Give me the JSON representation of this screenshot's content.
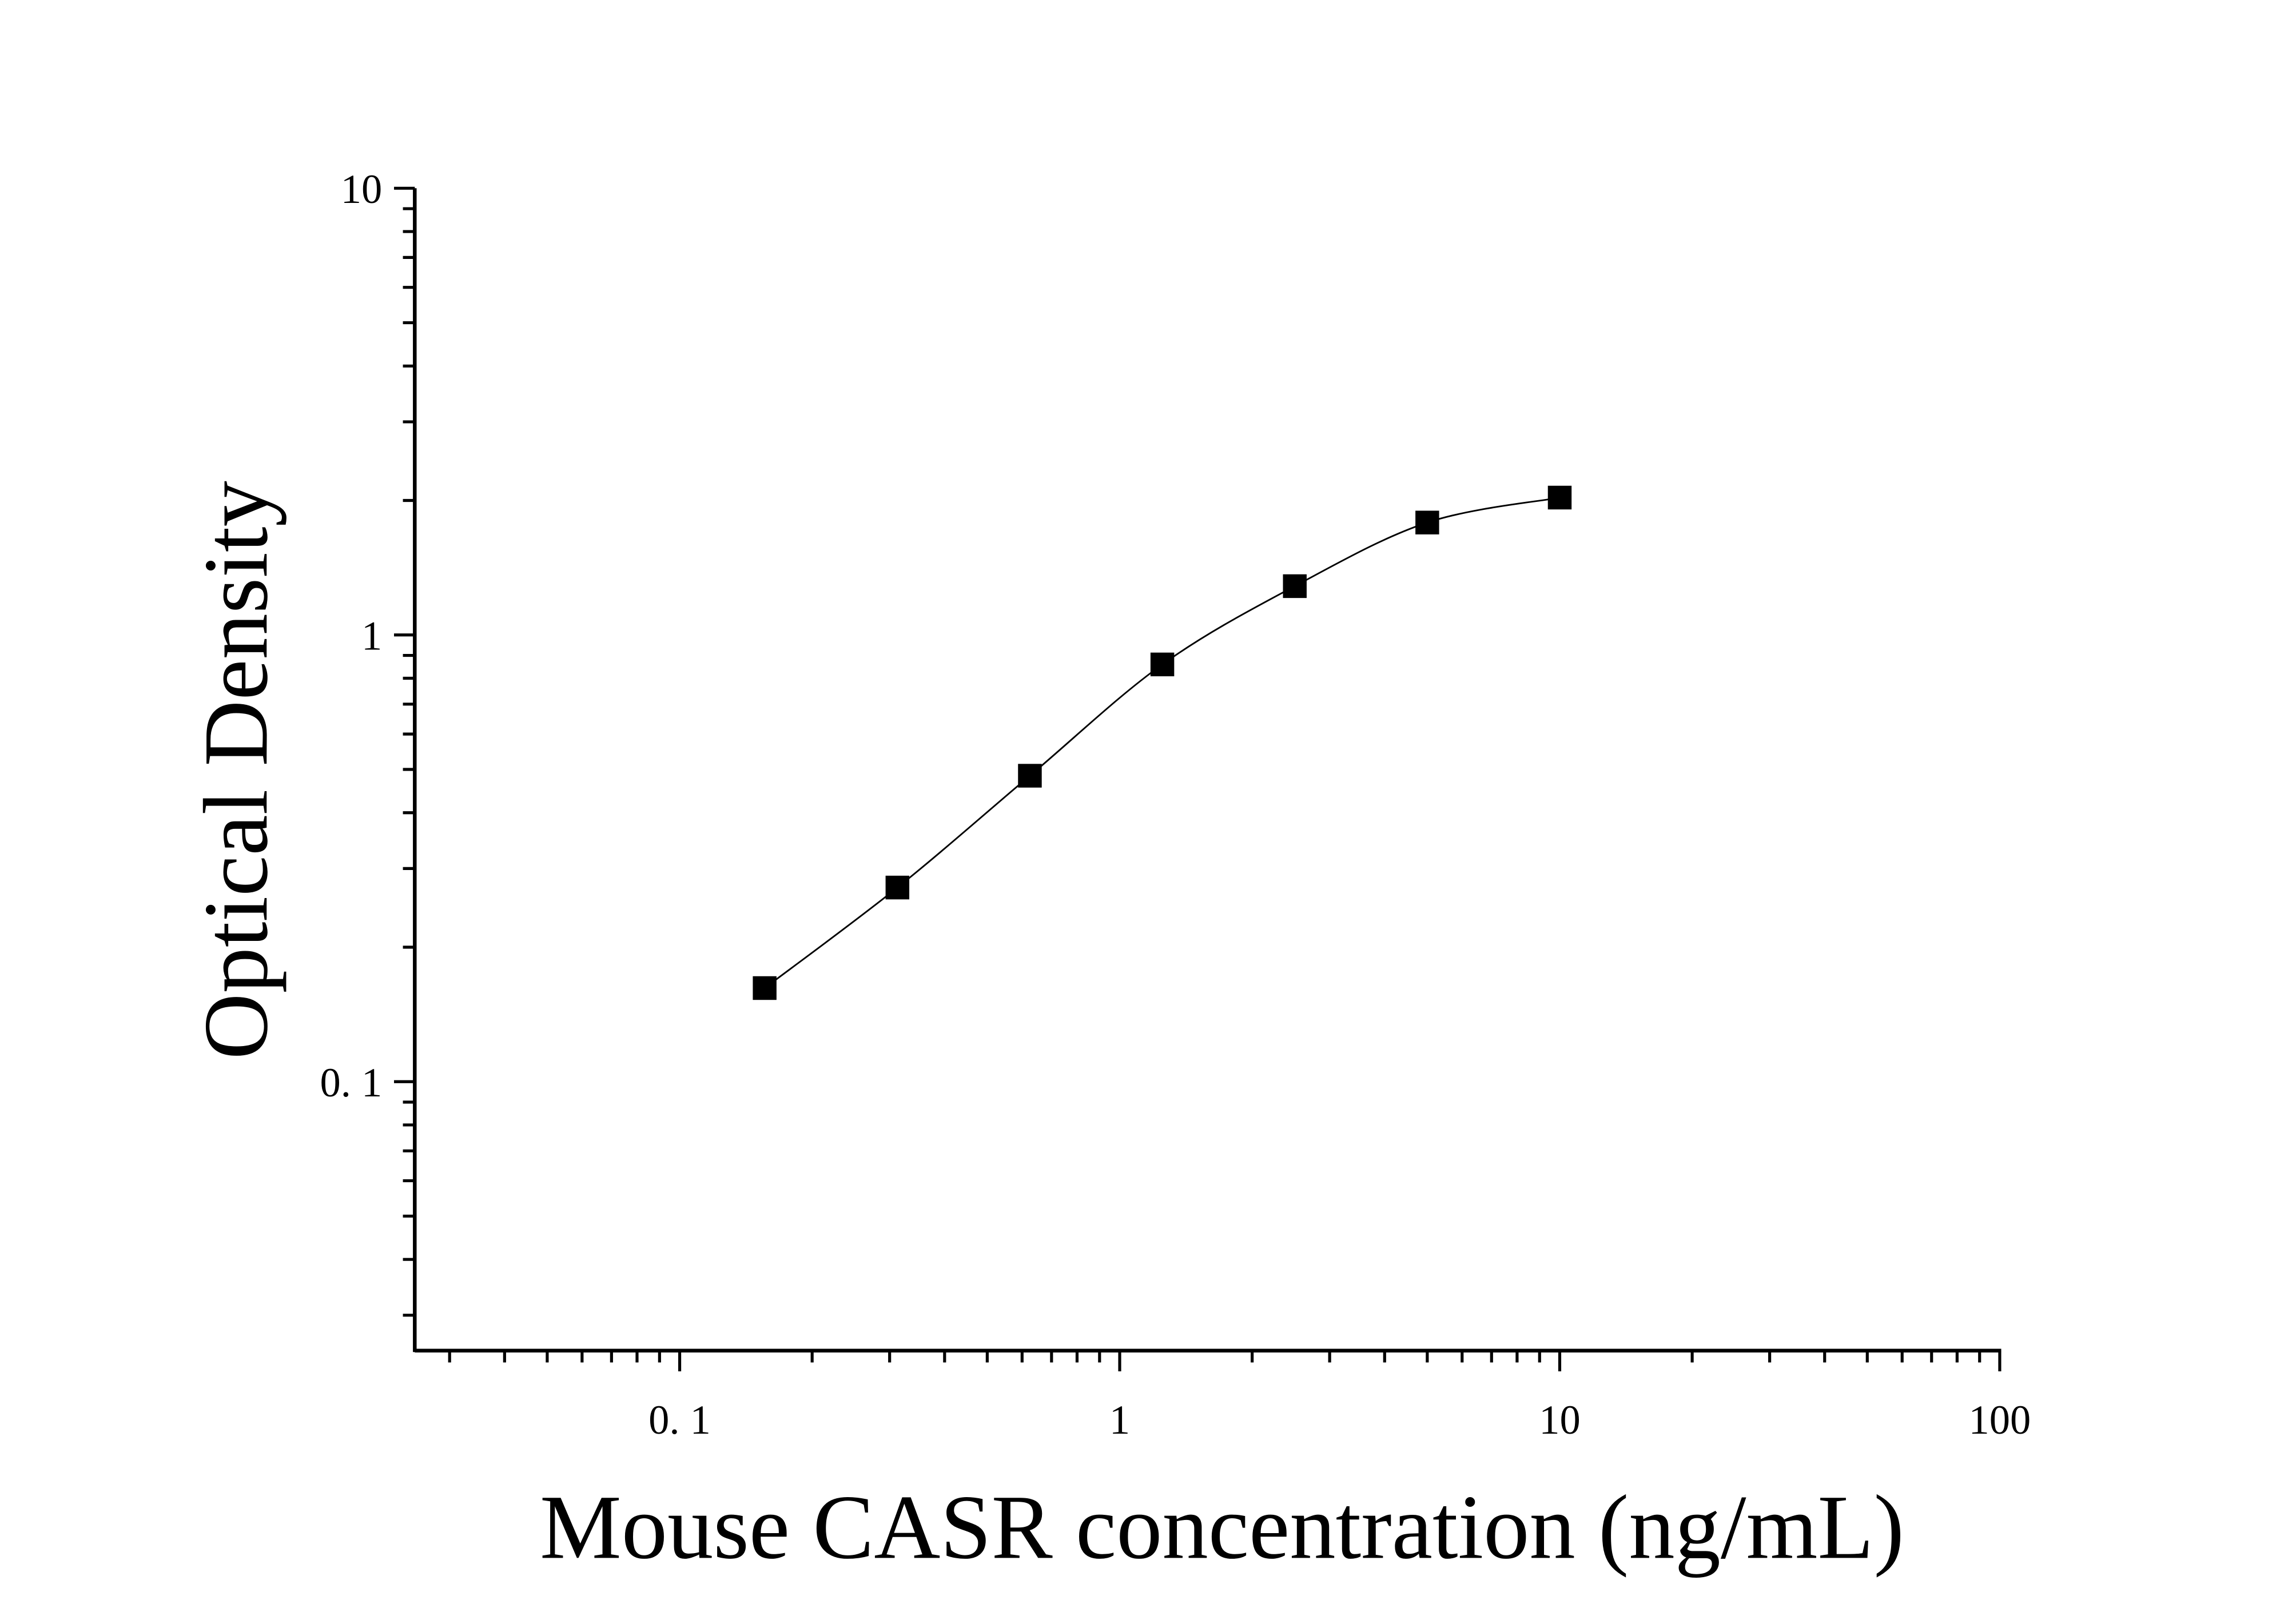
{
  "chart_data": {
    "type": "scatter",
    "title": "",
    "xlabel": "Mouse CASR concentration (ng/mL)",
    "ylabel": "Optical Density",
    "x_scale": "log",
    "y_scale": "log",
    "xlim": [
      0.025,
      100
    ],
    "ylim": [
      0.025,
      10
    ],
    "x_ticks": [
      {
        "value": 0.1,
        "label": "0. 1"
      },
      {
        "value": 1,
        "label": "1"
      },
      {
        "value": 10,
        "label": "10"
      },
      {
        "value": 100,
        "label": "100"
      }
    ],
    "y_ticks": [
      {
        "value": 0.1,
        "label": "0. 1"
      },
      {
        "value": 1,
        "label": "1"
      },
      {
        "value": 10,
        "label": "10"
      }
    ],
    "grid": false,
    "marker": "square",
    "fit_curve": true,
    "color": "#000000",
    "series": [
      {
        "x": [
          0.156,
          0.3125,
          0.625,
          1.25,
          2.5,
          5,
          10
        ],
        "y": [
          0.162,
          0.272,
          0.484,
          0.859,
          1.286,
          1.785,
          2.03
        ]
      }
    ]
  }
}
